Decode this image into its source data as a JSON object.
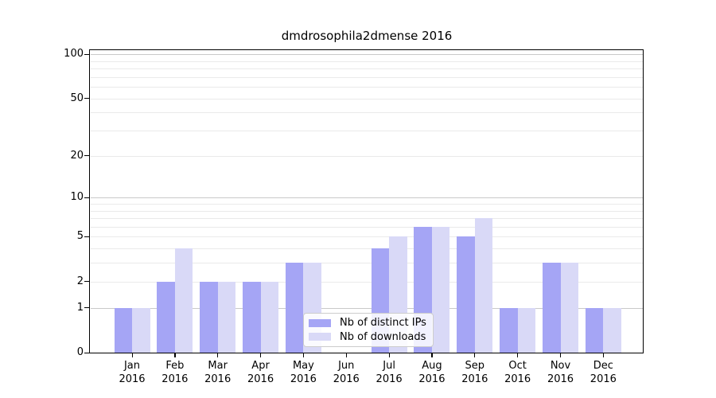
{
  "chart_data": {
    "type": "bar",
    "title": "dmdrosophila2dmense 2016",
    "x_month_labels": [
      "Jan",
      "Feb",
      "Mar",
      "Apr",
      "May",
      "Jun",
      "Jul",
      "Aug",
      "Sep",
      "Oct",
      "Nov",
      "Dec"
    ],
    "x_year_label": "2016",
    "series": [
      {
        "name": "Nb of distinct IPs",
        "color": "#a5a5f5",
        "values": [
          1,
          2,
          2,
          2,
          3,
          0,
          4,
          6,
          5,
          1,
          3,
          1
        ]
      },
      {
        "name": "Nb of downloads",
        "color": "#d9d9f7",
        "values": [
          1,
          4,
          2,
          2,
          3,
          0,
          5,
          6,
          7,
          1,
          3,
          1
        ]
      }
    ],
    "y_axis": {
      "scale": "log10(1+v)",
      "tick_labels": [
        0,
        1,
        2,
        5,
        10,
        20,
        50,
        100
      ],
      "major_gridline_values": [
        1,
        10,
        100
      ],
      "minor_gridline_values": [
        2,
        3,
        4,
        5,
        6,
        7,
        8,
        9,
        20,
        30,
        40,
        50,
        60,
        70,
        80,
        90
      ],
      "ylim": [
        0,
        108
      ]
    },
    "grid": true,
    "legend_position": "lower center-left"
  },
  "colors": {
    "bar_distinct_ips": "#a5a5f5",
    "bar_downloads": "#d9d9f7",
    "grid_major": "#c9c9c9",
    "grid_minor": "#eaeaea",
    "spine": "#000000",
    "legend_border": "#cccccc",
    "background": "#ffffff",
    "text": "#000000"
  }
}
